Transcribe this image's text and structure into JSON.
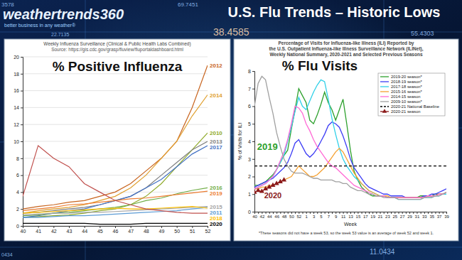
{
  "header": {
    "logo": "weathertrends360",
    "tagline": "better business in any weather®",
    "title": "U.S. Flu Trends – Historic Lows",
    "background_texts": [
      "3578",
      "69.7451",
      "38.4585",
      "22.7135",
      "55.4303",
      "11.0434",
      "0434"
    ]
  },
  "chart_data": [
    {
      "type": "line",
      "heading": "% Positive Influenza",
      "title": "Weekly Influenza Surveillance (Clinical & Public Health Labs Combined)",
      "subtitle": "Source: https://gis.cdc.gov/grasp/fluview/fluportaldashboard.html",
      "x": [
        40,
        41,
        42,
        43,
        44,
        45,
        46,
        47,
        48,
        49,
        50,
        51,
        52
      ],
      "xlim": [
        40,
        52
      ],
      "xticks": [
        40,
        41,
        42,
        43,
        44,
        45,
        46,
        47,
        48,
        49,
        50,
        51,
        52
      ],
      "ylim": [
        0,
        20
      ],
      "yticks": [
        0,
        2,
        4,
        6,
        8,
        10,
        12,
        14,
        16,
        18,
        20
      ],
      "grid": true,
      "series": [
        {
          "name": "2012",
          "color": "#c8641e",
          "values": [
            2.0,
            2.3,
            2.5,
            2.8,
            3.0,
            3.5,
            4.0,
            5.0,
            6.5,
            8.0,
            10.0,
            14.0,
            19.0
          ]
        },
        {
          "name": "2014",
          "color": "#e0a030",
          "values": [
            1.5,
            1.8,
            2.0,
            2.2,
            2.5,
            3.0,
            3.5,
            4.5,
            6.0,
            8.0,
            10.0,
            13.0,
            15.5
          ]
        },
        {
          "name": "2010",
          "color": "#8faa2a",
          "values": [
            1.0,
            1.1,
            1.2,
            1.3,
            1.5,
            1.8,
            2.0,
            2.5,
            3.5,
            5.0,
            7.0,
            9.0,
            11.0
          ]
        },
        {
          "name": "2013",
          "color": "#7f7f7f",
          "values": [
            1.5,
            1.6,
            1.8,
            2.0,
            2.2,
            2.5,
            3.0,
            3.5,
            4.5,
            6.0,
            7.5,
            9.0,
            10.0
          ]
        },
        {
          "name": "2017",
          "color": "#4472c4",
          "values": [
            1.0,
            1.2,
            1.5,
            1.8,
            2.0,
            2.5,
            3.0,
            3.5,
            4.5,
            5.5,
            7.0,
            8.5,
            9.5
          ]
        },
        {
          "name": "2016",
          "color": "#70ad47",
          "values": [
            1.2,
            1.3,
            1.5,
            1.6,
            1.8,
            2.0,
            2.2,
            2.5,
            3.0,
            3.3,
            3.8,
            4.2,
            4.5
          ]
        },
        {
          "name": "2019",
          "color": "#ed7d31",
          "values": [
            1.8,
            2.0,
            2.2,
            2.5,
            2.6,
            2.8,
            3.0,
            3.2,
            3.3,
            3.5,
            3.7,
            3.9,
            4.1
          ]
        },
        {
          "name": "2011",
          "color": "#5b9bd5",
          "values": [
            1.0,
            1.0,
            1.1,
            1.2,
            1.2,
            1.3,
            1.4,
            1.5,
            1.6,
            1.7,
            1.8,
            2.0,
            2.2
          ]
        },
        {
          "name": "2015",
          "color": "#a5a5a5",
          "values": [
            1.3,
            1.4,
            1.5,
            1.5,
            1.6,
            1.6,
            1.7,
            1.8,
            1.9,
            2.0,
            2.1,
            2.2,
            2.3
          ]
        },
        {
          "name": "2018",
          "color": "#ffc000",
          "values": [
            1.5,
            1.6,
            1.7,
            1.8,
            1.9,
            2.0,
            2.1,
            2.0,
            2.0,
            2.1,
            2.2,
            2.3,
            2.1
          ]
        },
        {
          "name": "2020",
          "color": "#000000",
          "values": [
            0.3,
            0.3,
            0.3,
            0.3,
            0.3,
            0.2,
            0.2,
            0.2,
            0.3,
            0.3,
            0.3,
            0.3,
            0.3
          ]
        },
        {
          "color": "#c0504d",
          "values": [
            3.5,
            9.5,
            8.0,
            7.0,
            5.0,
            4.0,
            3.0,
            2.5,
            2.0,
            1.8,
            1.6,
            1.5,
            1.5
          ]
        }
      ]
    },
    {
      "type": "line",
      "heading": "% Flu Visits",
      "title": [
        "Percentage of Visits for Influenza-like Illness (ILI) Reported by",
        "the U.S. Outpatient Influenza-like Illness Surveillance Network (ILINet),",
        "Weekly National Summary, 2020-2021 and Selected Previous Seasons"
      ],
      "x_label": "Week",
      "y_label": "% of Visits for ILI",
      "footnote": "*These seasons did not have a week 53, so the week 53 value is an average of week 52 and week 1.",
      "categories": [
        40,
        null,
        42,
        null,
        44,
        null,
        46,
        null,
        48,
        null,
        50,
        null,
        52,
        null,
        1,
        null,
        3,
        null,
        5,
        null,
        7,
        null,
        9,
        null,
        11,
        null,
        13,
        null,
        15,
        null,
        17,
        null,
        19,
        null,
        21,
        null,
        23,
        null,
        25,
        null,
        27,
        null,
        29,
        null,
        31,
        null,
        33,
        null,
        35,
        null,
        37,
        null,
        39
      ],
      "ylim": [
        0,
        8
      ],
      "yticks": [
        0,
        1,
        2,
        3,
        4,
        5,
        6,
        7,
        8
      ],
      "grid": false,
      "legend": "top-right",
      "series": [
        {
          "name": "2019-20 season*",
          "color": "#2ca02c",
          "values": [
            1.5,
            1.5,
            1.6,
            1.7,
            1.9,
            2.1,
            2.4,
            2.8,
            3.2,
            3.5,
            4.7,
            5.8,
            7.0,
            6.6,
            6.2,
            5.2,
            5.0,
            5.5,
            6.1,
            6.8,
            6.2,
            5.8,
            5.2,
            5.8,
            6.4,
            5.0,
            3.5,
            2.3,
            1.8,
            1.4,
            1.2,
            1.0,
            0.9,
            0.9,
            0.9,
            0.9,
            0.8,
            0.8,
            0.8,
            0.8,
            0.8,
            0.8,
            0.8,
            0.8,
            0.8,
            0.9,
            0.9,
            0.9,
            0.9,
            1.0,
            1.0,
            1.0,
            1.1
          ]
        },
        {
          "name": "2018-19 season*",
          "color": "#3d3df5",
          "values": [
            1.4,
            1.5,
            1.6,
            1.7,
            1.8,
            1.9,
            2.1,
            2.3,
            2.5,
            2.8,
            3.3,
            3.9,
            4.1,
            3.7,
            3.3,
            3.1,
            3.3,
            3.6,
            4.0,
            4.4,
            4.9,
            5.1,
            5.0,
            4.8,
            4.3,
            3.7,
            3.0,
            2.5,
            2.2,
            1.9,
            1.6,
            1.4,
            1.3,
            1.2,
            1.1,
            1.0,
            1.0,
            0.9,
            0.9,
            0.9,
            0.9,
            0.8,
            0.8,
            0.8,
            0.8,
            0.8,
            0.9,
            0.9,
            1.0,
            1.0,
            1.1,
            1.2,
            1.3
          ]
        },
        {
          "name": "2017-18 season*",
          "color": "#2fd0e8",
          "values": [
            1.3,
            1.4,
            1.5,
            1.6,
            1.8,
            2.0,
            2.4,
            2.8,
            3.2,
            4.0,
            4.8,
            5.7,
            6.5,
            6.0,
            5.8,
            6.3,
            6.8,
            7.2,
            7.5,
            7.4,
            6.4,
            5.3,
            4.4,
            3.6,
            3.0,
            2.6,
            2.3,
            2.0,
            1.8,
            1.6,
            1.4,
            1.2,
            1.1,
            1.0,
            0.9,
            0.9,
            0.8,
            0.8,
            0.8,
            0.7,
            0.7,
            0.7,
            0.7,
            0.7,
            0.7,
            0.7,
            0.8,
            0.8,
            0.8,
            0.9,
            0.9,
            1.0,
            1.0
          ]
        },
        {
          "name": "2015-16 season*",
          "color": "#f5a030",
          "values": [
            1.3,
            1.3,
            1.4,
            1.4,
            1.5,
            1.5,
            1.6,
            1.7,
            1.8,
            1.9,
            2.0,
            2.3,
            2.6,
            2.4,
            2.2,
            2.0,
            2.0,
            2.1,
            2.3,
            2.5,
            2.8,
            3.1,
            3.4,
            3.6,
            3.4,
            3.0,
            2.6,
            2.2,
            1.9,
            1.6,
            1.4,
            1.2,
            1.1,
            1.0,
            0.9,
            0.9,
            0.9,
            0.8,
            0.8,
            0.8,
            0.8,
            0.8,
            0.8,
            0.8,
            0.8,
            0.8,
            0.8,
            0.9,
            0.9,
            0.9,
            1.0,
            1.0,
            1.1
          ]
        },
        {
          "name": "2014-15 season",
          "color": "#ff6ad5",
          "values": [
            1.3,
            1.4,
            1.5,
            1.6,
            1.8,
            2.0,
            2.4,
            2.9,
            3.4,
            4.1,
            5.0,
            6.0,
            5.9,
            5.6,
            5.0,
            4.6,
            4.1,
            3.7,
            3.4,
            3.1,
            2.8,
            2.6,
            2.5,
            2.3,
            2.1,
            1.9,
            1.7,
            1.5,
            1.4,
            1.3,
            1.2,
            1.1,
            1.0,
            0.9,
            0.9,
            0.9,
            0.8,
            0.8,
            0.8,
            0.8,
            0.8,
            0.8,
            0.8,
            0.8,
            0.8,
            0.8,
            0.8,
            0.9,
            0.9,
            0.9,
            1.0,
            1.0,
            1.1
          ]
        },
        {
          "name": "2009-10 season*",
          "color": "#a0a0a0",
          "values": [
            6.0,
            7.3,
            7.7,
            7.5,
            6.5,
            5.6,
            4.5,
            3.7,
            3.0,
            2.6,
            2.3,
            2.2,
            2.2,
            2.2,
            2.1,
            2.0,
            1.9,
            1.9,
            1.8,
            1.8,
            1.8,
            1.8,
            1.7,
            1.7,
            1.6,
            1.6,
            1.4,
            1.3,
            1.2,
            1.2,
            1.1,
            1.0,
            1.0,
            0.9,
            0.9,
            0.8,
            0.8,
            0.8,
            0.8,
            0.7,
            0.7,
            0.7,
            0.7,
            0.7,
            0.7,
            0.7,
            0.8,
            0.8,
            0.8,
            0.9,
            0.9,
            1.0,
            1.1
          ]
        },
        {
          "name": "2020-21 National Baseline",
          "color": "#000000",
          "line_style": "dashed",
          "values": [
            2.6,
            2.6,
            2.6,
            2.6,
            2.6,
            2.6,
            2.6,
            2.6,
            2.6,
            2.6,
            2.6,
            2.6,
            2.6,
            2.6,
            2.6,
            2.6,
            2.6,
            2.6,
            2.6,
            2.6,
            2.6,
            2.6,
            2.6,
            2.6,
            2.6,
            2.6,
            2.6,
            2.6,
            2.6,
            2.6,
            2.6,
            2.6,
            2.6,
            2.6,
            2.6,
            2.6,
            2.6,
            2.6,
            2.6,
            2.6,
            2.6,
            2.6,
            2.6,
            2.6,
            2.6,
            2.6,
            2.6,
            2.6,
            2.6,
            2.6,
            2.6,
            2.6,
            2.6
          ]
        },
        {
          "name": "2020-21 season",
          "color": "#8b1a1a",
          "marker": "triangle",
          "values": [
            1.1,
            1.2,
            1.15,
            1.3,
            1.4,
            1.5,
            1.6,
            1.7,
            1.8,
            null,
            null,
            null,
            null,
            null,
            null,
            null,
            null,
            null,
            null,
            null,
            null,
            null,
            null,
            null,
            null,
            null,
            null,
            null,
            null,
            null,
            null,
            null,
            null,
            null,
            null,
            null,
            null,
            null,
            null,
            null,
            null,
            null,
            null,
            null,
            null,
            null,
            null,
            null,
            null,
            null,
            null,
            null,
            null
          ]
        }
      ],
      "annotations": [
        {
          "text": "2019",
          "x": 3.5,
          "y": 3.5,
          "color": "#2ca02c"
        },
        {
          "text": "2020",
          "x": 5,
          "y": 0.75,
          "color": "#8b1a1a"
        }
      ]
    }
  ]
}
